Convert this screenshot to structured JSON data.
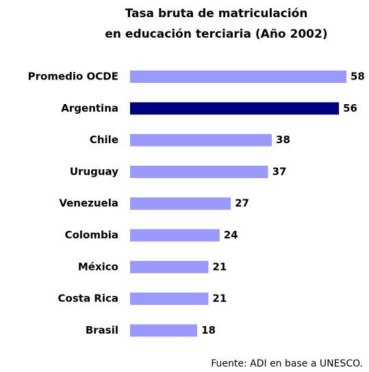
{
  "chart_data": {
    "type": "barh",
    "title": [
      "Tasa bruta de matriculación",
      "en educación terciaria (Año 2002)"
    ],
    "categories": [
      "Promedio OCDE",
      "Argentina",
      "Chile",
      "Uruguay",
      "Venezuela",
      "Colombia",
      "México",
      "Costa Rica",
      "Brasil"
    ],
    "values": [
      58,
      56,
      38,
      37,
      27,
      24,
      21,
      21,
      18
    ],
    "colors": [
      "#9999ff",
      "#000080",
      "#9999ff",
      "#9999ff",
      "#9999ff",
      "#9999ff",
      "#9999ff",
      "#9999ff",
      "#9999ff"
    ],
    "source": "Fuente: ADI en base a UNESCO."
  }
}
